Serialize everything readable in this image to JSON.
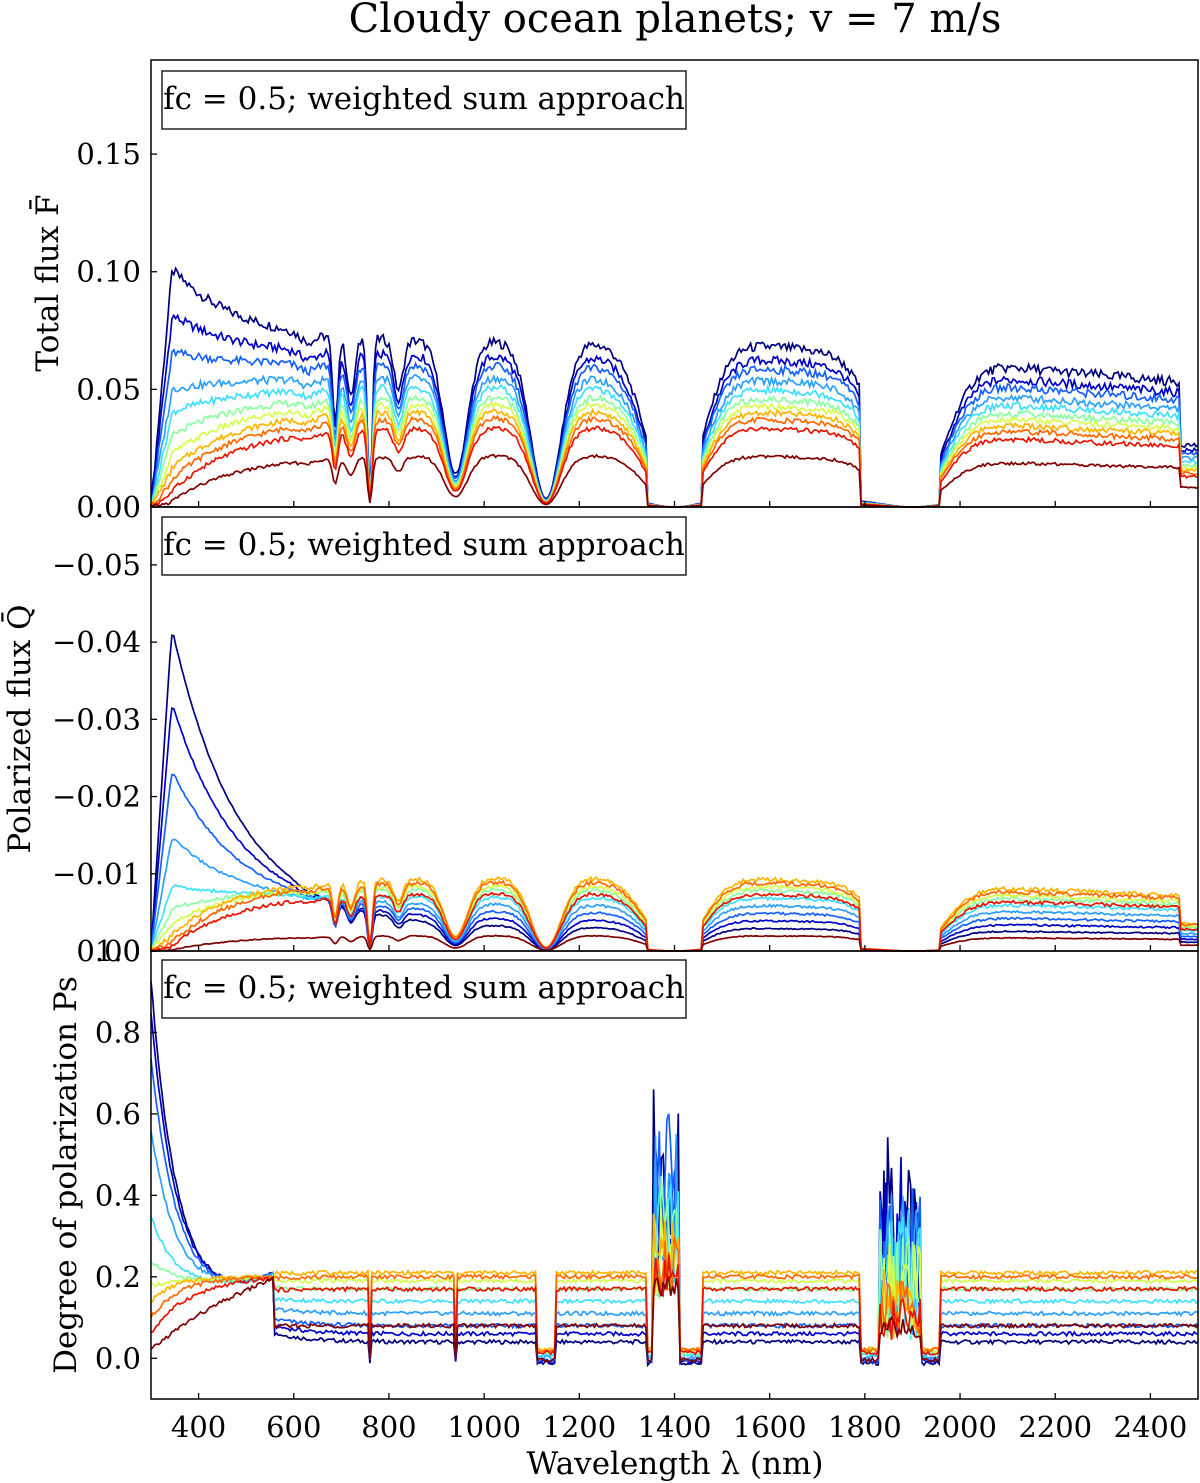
{
  "chart_data": {
    "title": "Cloudy ocean planets; v = 7 m/s",
    "type": "line",
    "xlabel": "Wavelength λ (nm)",
    "xlim": [
      300,
      2500
    ],
    "xticks": [
      400,
      600,
      800,
      1000,
      1200,
      1400,
      1600,
      1800,
      2000,
      2200,
      2400
    ],
    "colormap": [
      "#00007f",
      "#0000c8",
      "#1560ff",
      "#2ca0ff",
      "#3fe0ff",
      "#8cffa0",
      "#d4ff4a",
      "#ffb400",
      "#ff6a00",
      "#e81400",
      "#7f0000"
    ],
    "panels": [
      {
        "name": "total-flux",
        "ylabel": "Total flux F̄",
        "annotation": "fc = 0.5; weighted sum approach",
        "ylim": [
          0,
          0.19
        ],
        "yticks": [
          "0.00",
          "0.05",
          "0.10",
          "0.15"
        ],
        "series": [
          {
            "name": "curve 1",
            "peak": 0.102,
            "continuum": 0.07
          },
          {
            "name": "curve 2",
            "peak": 0.082,
            "continuum": 0.064
          },
          {
            "name": "curve 3",
            "peak": 0.066,
            "continuum": 0.06
          },
          {
            "name": "curve 4",
            "peak": 0.05,
            "continuum": 0.055
          },
          {
            "name": "curve 5",
            "peak": 0.04,
            "continuum": 0.051
          },
          {
            "name": "curve 6",
            "peak": 0.03,
            "continuum": 0.047
          },
          {
            "name": "curve 7",
            "peak": 0.022,
            "continuum": 0.044
          },
          {
            "name": "curve 8",
            "peak": 0.016,
            "continuum": 0.041
          },
          {
            "name": "curve 9",
            "peak": 0.011,
            "continuum": 0.038
          },
          {
            "name": "curve 10",
            "peak": 0.006,
            "continuum": 0.034
          },
          {
            "name": "curve 11",
            "peak": 0.002,
            "continuum": 0.022
          }
        ]
      },
      {
        "name": "polarized-flux",
        "ylabel": "Polarized flux Q̄",
        "annotation": "fc = 0.5; weighted sum approach",
        "ylim": [
          0,
          -0.0575
        ],
        "yticks": [
          "0.00",
          "−0.01",
          "−0.02",
          "−0.03",
          "−0.04",
          "−0.05"
        ],
        "series": [
          {
            "name": "curve 1",
            "peak": -0.043,
            "continuum": -0.003
          },
          {
            "name": "curve 2",
            "peak": -0.033,
            "continuum": -0.004
          },
          {
            "name": "curve 3",
            "peak": -0.024,
            "continuum": -0.005
          },
          {
            "name": "curve 4",
            "peak": -0.015,
            "continuum": -0.006
          },
          {
            "name": "curve 5",
            "peak": -0.0085,
            "continuum": -0.007
          },
          {
            "name": "curve 6",
            "peak": -0.0055,
            "continuum": -0.008
          },
          {
            "name": "curve 7",
            "peak": -0.0035,
            "continuum": -0.0085
          },
          {
            "name": "curve 8",
            "peak": -0.002,
            "continuum": -0.0095
          },
          {
            "name": "curve 9",
            "peak": -0.001,
            "continuum": -0.009
          },
          {
            "name": "curve 10",
            "peak": -0.0005,
            "continuum": -0.0075
          },
          {
            "name": "curve 11",
            "peak": -0.0001,
            "continuum": -0.002
          }
        ]
      },
      {
        "name": "degree-of-polarization",
        "ylabel": "Degree of polarization Ps",
        "annotation": "fc = 0.5; weighted sum approach",
        "ylim": [
          -0.1,
          1.0
        ],
        "yticks": [
          "0.0",
          "0.2",
          "0.4",
          "0.6",
          "0.8",
          "1.0"
        ],
        "series": [
          {
            "name": "curve 1",
            "peak": 0.93,
            "continuum": 0.04
          },
          {
            "name": "curve 2",
            "peak": 0.85,
            "continuum": 0.06
          },
          {
            "name": "curve 3",
            "peak": 0.74,
            "continuum": 0.08
          },
          {
            "name": "curve 4",
            "peak": 0.56,
            "continuum": 0.11
          },
          {
            "name": "curve 5",
            "peak": 0.35,
            "continuum": 0.14
          },
          {
            "name": "curve 6",
            "peak": 0.24,
            "continuum": 0.17
          },
          {
            "name": "curve 7",
            "peak": 0.18,
            "continuum": 0.19
          },
          {
            "name": "curve 8",
            "peak": 0.14,
            "continuum": 0.21
          },
          {
            "name": "curve 9",
            "peak": 0.1,
            "continuum": 0.2
          },
          {
            "name": "curve 10",
            "peak": 0.06,
            "continuum": 0.17
          },
          {
            "name": "curve 11",
            "peak": 0.02,
            "continuum": 0.08
          }
        ]
      }
    ]
  }
}
